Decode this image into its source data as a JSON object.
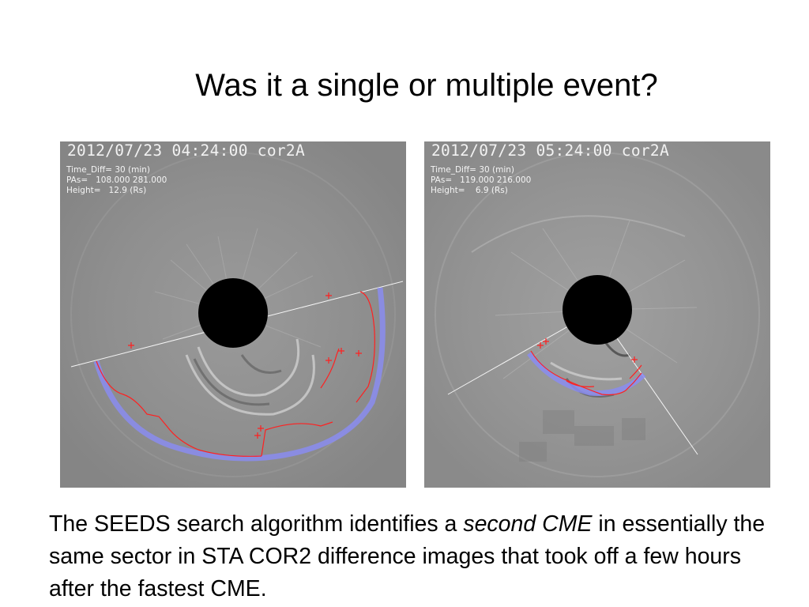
{
  "slide": {
    "title": "Was it a single or multiple event?"
  },
  "panels": [
    {
      "header": "2012/07/23 04:24:00 cor2A",
      "time_diff": "Time_Diff= 30 (min)",
      "pas": "PAs=   108.000 281.000",
      "height": "Height=   12.9 (Rs)"
    },
    {
      "header": "2012/07/23 05:24:00 cor2A",
      "time_diff": "Time_Diff= 30 (min)",
      "pas": "PAs=   119.000 216.000",
      "height": "Height=    6.9 (Rs)"
    }
  ],
  "caption": {
    "part1": "The SEEDS search algorithm identifies a ",
    "emphasis": "second CME",
    "part2": " in essentially the same sector in STA COR2 difference images that took off a few hours after the fastest CME."
  },
  "colors": {
    "background": "#ffffff",
    "panel_gray": "#8e8e8e",
    "occulter": "#000000",
    "detection_marks": "#ff2020",
    "front_fit": "#8a8cf0",
    "sector_lines": "#ffffff"
  }
}
